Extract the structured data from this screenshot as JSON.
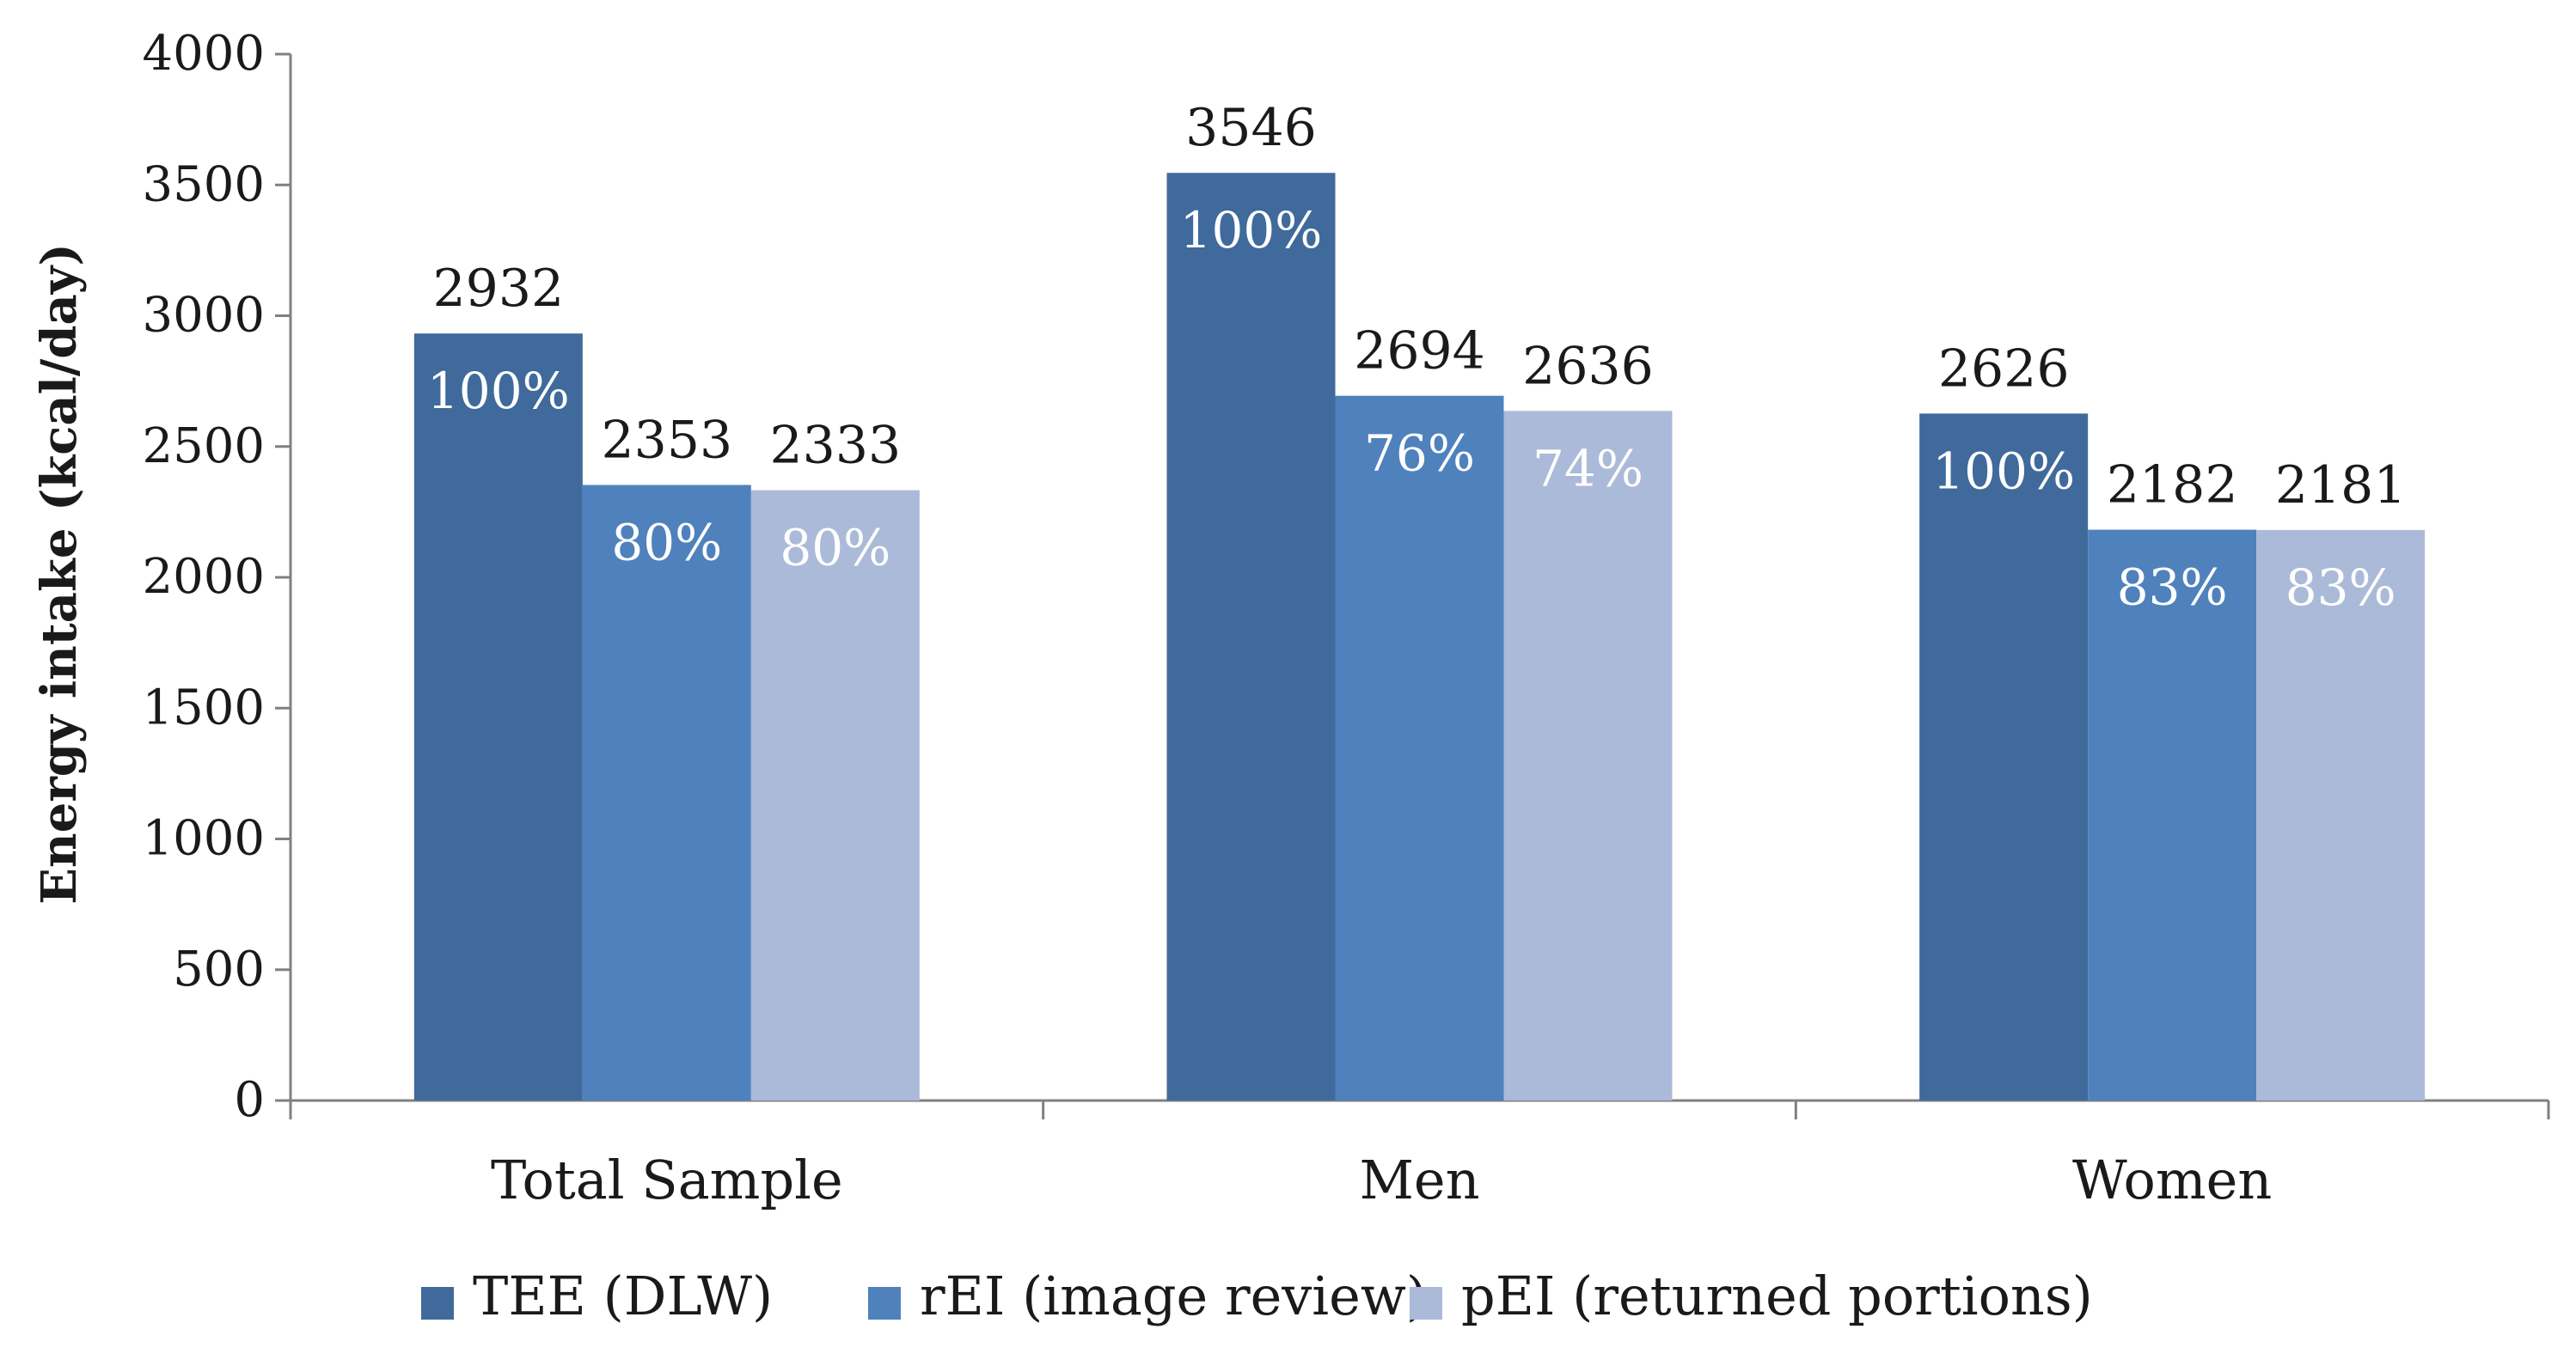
{
  "chart_data": {
    "type": "bar",
    "title": "",
    "xlabel": "",
    "ylabel": "Energy intake (kcal/day)",
    "ylim": [
      0,
      4000
    ],
    "yticks": [
      0,
      500,
      1000,
      1500,
      2000,
      2500,
      3000,
      3500,
      4000
    ],
    "grid": false,
    "legend_position": "bottom",
    "categories": [
      "Total Sample",
      "Men",
      "Women"
    ],
    "series": [
      {
        "name": "TEE (DLW)",
        "color": "#3f6a9b",
        "values": [
          2932,
          3546,
          2626
        ],
        "percent_labels": [
          "100%",
          "100%",
          "100%"
        ]
      },
      {
        "name": "rEI (image review)",
        "color": "#4f81bd",
        "values": [
          2353,
          2694,
          2182
        ],
        "percent_labels": [
          "80%",
          "76%",
          "83%"
        ]
      },
      {
        "name": "pEI (returned portions)",
        "color": "#abbad8",
        "values": [
          2333,
          2636,
          2181
        ],
        "percent_labels": [
          "80%",
          "74%",
          "83%"
        ]
      }
    ]
  }
}
